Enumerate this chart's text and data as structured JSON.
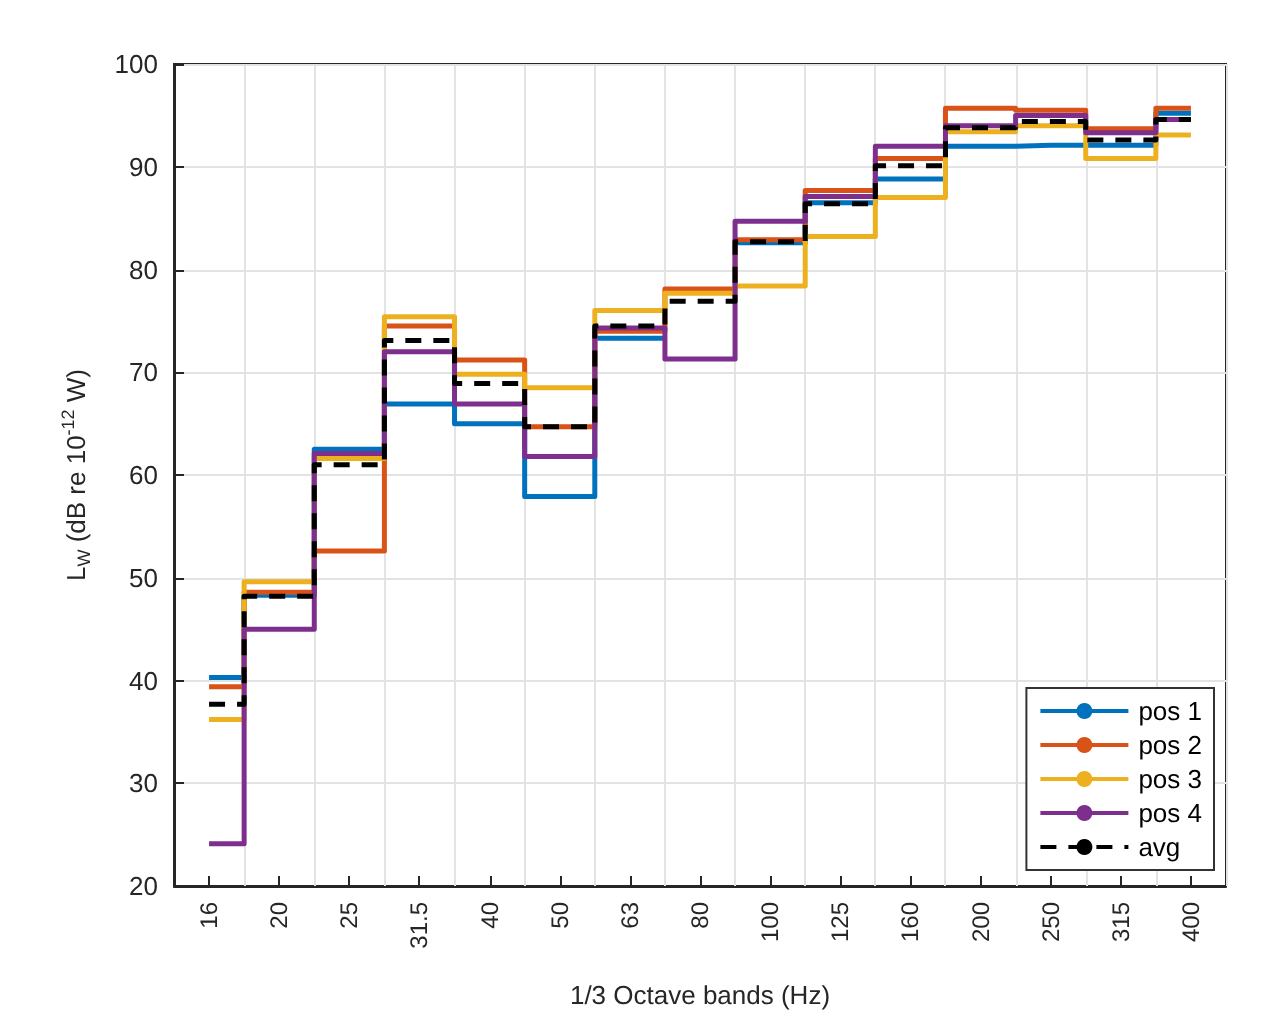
{
  "chart_data": {
    "type": "step",
    "xlabel": "1/3 Octave bands (Hz)",
    "ylabel": "L$_{W}$ (dB re 10$^{-12}$ W)",
    "categories": [
      "16",
      "20",
      "25",
      "31.5",
      "40",
      "50",
      "63",
      "80",
      "100",
      "125",
      "160",
      "200",
      "250",
      "315",
      "400"
    ],
    "series": [
      {
        "name": "pos 1",
        "color": "#0072bd",
        "values": [
          40.3,
          48.3,
          62.5,
          66.9,
          65.0,
          57.9,
          73.3,
          null,
          82.6,
          86.5,
          88.8,
          92.0,
          92.1,
          92.1,
          95.2
        ]
      },
      {
        "name": "pos 2",
        "color": "#d95319",
        "values": [
          39.4,
          48.6,
          52.6,
          74.5,
          71.2,
          64.7,
          74.0,
          78.1,
          82.9,
          87.7,
          90.8,
          95.7,
          95.5,
          93.7,
          95.7
        ]
      },
      {
        "name": "pos 3",
        "color": "#edb120",
        "values": [
          36.2,
          49.6,
          61.6,
          75.4,
          69.8,
          68.5,
          76.0,
          77.7,
          78.4,
          83.2,
          87.0,
          93.4,
          94.0,
          90.8,
          93.1
        ]
      },
      {
        "name": "pos 4",
        "color": "#7e2f8e",
        "values": [
          24.1,
          45.0,
          62.1,
          72.0,
          66.9,
          61.8,
          74.3,
          71.3,
          84.7,
          87.1,
          92.0,
          94.0,
          95.0,
          93.3,
          94.6
        ]
      },
      {
        "name": "avg",
        "color": "#000000",
        "line_style": "dashed",
        "values": [
          37.7,
          48.2,
          61.0,
          73.1,
          68.9,
          64.7,
          74.5,
          76.9,
          82.7,
          86.4,
          90.1,
          93.8,
          94.4,
          92.6,
          94.6
        ]
      }
    ],
    "ylim": [
      20,
      100
    ],
    "yticks": [
      20,
      30,
      40,
      50,
      60,
      70,
      80,
      90,
      100
    ],
    "grid": true,
    "legend": "bottom right",
    "line_style": "solid",
    "marker": "none"
  }
}
